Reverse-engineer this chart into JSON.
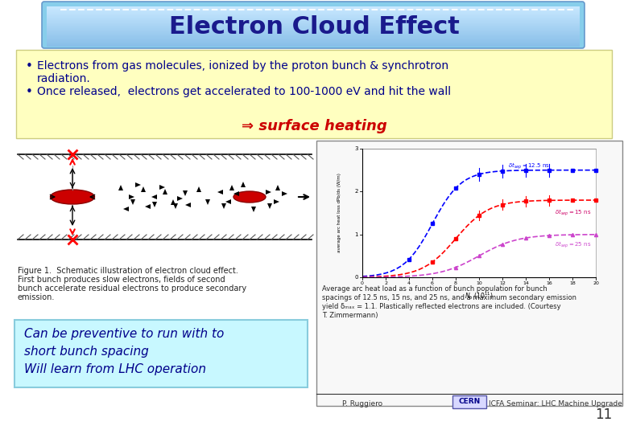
{
  "title": "Electron Cloud Effect",
  "title_text_color": "#1a1a8c",
  "slide_bg": "#ffffff",
  "bullet_bg": "#ffffc0",
  "bullet_text_color": "#00008B",
  "bullet1_line1": "Electrons from gas molecules, ionized by the proton bunch & synchrotron",
  "bullet1_line2": "radiation.",
  "bullet2": "Once released,  electrons get accelerated to 100-1000 eV and hit the wall",
  "arrow_text": "⇒ surface heating",
  "arrow_text_color": "#cc0000",
  "callout_bg": "#c8f8ff",
  "callout_text_color": "#00008B",
  "callout_line1": "Can be preventive to run with to",
  "callout_line2": "short bunch spacing",
  "callout_line3": "Will learn from LHC operation",
  "fig1_caption_line1": "Figure 1.  Schematic illustration of electron cloud effect.",
  "fig1_caption_line2": "First bunch produces slow electrons, fields of second",
  "fig1_caption_line3": "bunch accelerate residual electrons to produce secondary",
  "fig1_caption_line4": "emission.",
  "right_caption_line1": "Average arc heat load as a function of bunch population for bunch",
  "right_caption_line2": "spacings of 12.5 ns, 15 ns, and 25 ns, and a maximum secondary emission",
  "right_caption_line3": "yield δₘₐₓ = 1.1. Plastically reflected electrons are included. (Courtesy",
  "right_caption_line4": "T. Zimmermann)",
  "footer_left": "P. Ruggiero",
  "footer_center": "CERN",
  "footer_right": "ICFA Seminar: LHC Machine Upgrade",
  "slide_number": "11"
}
